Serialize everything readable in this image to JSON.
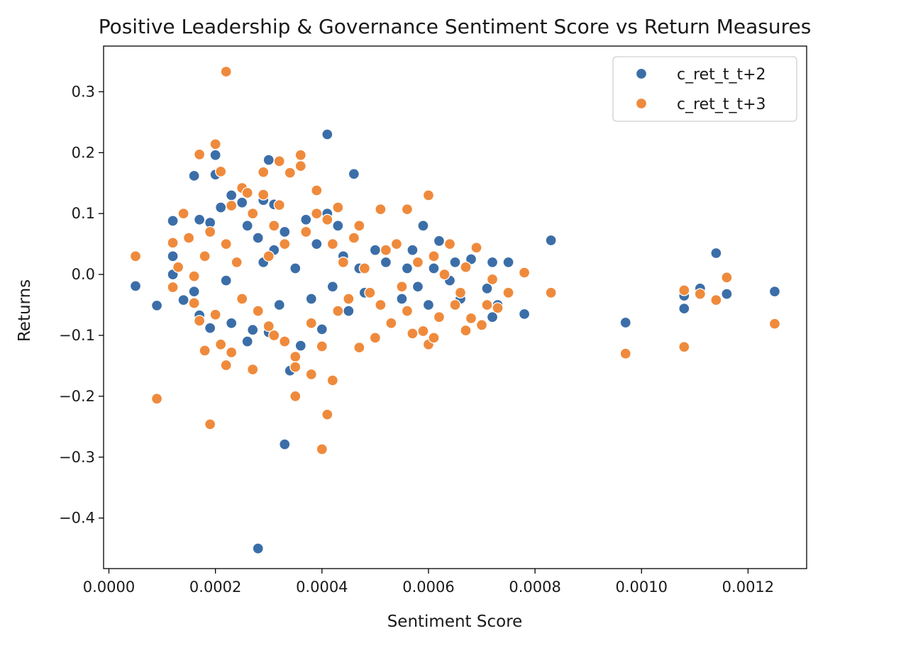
{
  "chart_data": {
    "type": "scatter",
    "title": "Positive Leadership & Governance Sentiment Score vs Return Measures",
    "xlabel": "Sentiment Score",
    "ylabel": "Returns",
    "xlim": [
      -1e-05,
      0.00131
    ],
    "ylim": [
      -0.483,
      0.375
    ],
    "xticks": [
      0.0,
      0.0002,
      0.0004,
      0.0006,
      0.0008,
      0.001,
      0.0012
    ],
    "xtick_labels": [
      "0.0000",
      "0.0002",
      "0.0004",
      "0.0006",
      "0.0008",
      "0.0010",
      "0.0012"
    ],
    "yticks": [
      -0.4,
      -0.3,
      -0.2,
      -0.1,
      0.0,
      0.1,
      0.2,
      0.3
    ],
    "ytick_labels": [
      "−0.4",
      "−0.3",
      "−0.2",
      "−0.1",
      "0.0",
      "0.1",
      "0.2",
      "0.3"
    ],
    "grid": false,
    "legend_position": "top-right",
    "series": [
      {
        "name": "c_ret_t_t+2",
        "color": "#3b6ea8",
        "points": [
          [
            5e-05,
            -0.019
          ],
          [
            9e-05,
            -0.051
          ],
          [
            0.00012,
            0.03
          ],
          [
            0.00012,
            0.088
          ],
          [
            0.00012,
            0.0
          ],
          [
            0.00014,
            -0.042
          ],
          [
            0.00016,
            0.162
          ],
          [
            0.00016,
            -0.028
          ],
          [
            0.00017,
            0.09
          ],
          [
            0.00017,
            -0.067
          ],
          [
            0.00019,
            -0.088
          ],
          [
            0.00019,
            0.085
          ],
          [
            0.0002,
            0.196
          ],
          [
            0.0002,
            0.164
          ],
          [
            0.00021,
            0.11
          ],
          [
            0.00022,
            -0.01
          ],
          [
            0.00023,
            0.13
          ],
          [
            0.00023,
            -0.08
          ],
          [
            0.00025,
            0.118
          ],
          [
            0.00026,
            0.08
          ],
          [
            0.00026,
            -0.11
          ],
          [
            0.00027,
            -0.091
          ],
          [
            0.00028,
            0.06
          ],
          [
            0.00028,
            -0.45
          ],
          [
            0.00029,
            0.122
          ],
          [
            0.00029,
            0.02
          ],
          [
            0.0003,
            0.188
          ],
          [
            0.0003,
            -0.095
          ],
          [
            0.00031,
            0.04
          ],
          [
            0.00031,
            0.115
          ],
          [
            0.00032,
            -0.05
          ],
          [
            0.00033,
            0.07
          ],
          [
            0.00033,
            -0.279
          ],
          [
            0.00034,
            -0.158
          ],
          [
            0.00035,
            0.01
          ],
          [
            0.00036,
            -0.117
          ],
          [
            0.00037,
            0.09
          ],
          [
            0.00038,
            -0.04
          ],
          [
            0.00039,
            0.05
          ],
          [
            0.0004,
            -0.09
          ],
          [
            0.00041,
            0.1
          ],
          [
            0.00041,
            0.23
          ],
          [
            0.00042,
            -0.02
          ],
          [
            0.00043,
            0.08
          ],
          [
            0.00044,
            0.03
          ],
          [
            0.00045,
            -0.06
          ],
          [
            0.00046,
            0.165
          ],
          [
            0.00047,
            0.01
          ],
          [
            0.00048,
            -0.03
          ],
          [
            0.0005,
            0.04
          ],
          [
            0.00051,
            -0.05
          ],
          [
            0.00052,
            0.02
          ],
          [
            0.00054,
            0.05
          ],
          [
            0.00055,
            -0.04
          ],
          [
            0.00056,
            0.01
          ],
          [
            0.00057,
            0.04
          ],
          [
            0.00058,
            -0.02
          ],
          [
            0.00059,
            0.08
          ],
          [
            0.0006,
            -0.05
          ],
          [
            0.00061,
            0.01
          ],
          [
            0.00062,
            0.055
          ],
          [
            0.00064,
            -0.01
          ],
          [
            0.00065,
            0.02
          ],
          [
            0.00066,
            -0.04
          ],
          [
            0.00068,
            0.025
          ],
          [
            0.00071,
            -0.023
          ],
          [
            0.00072,
            -0.07
          ],
          [
            0.00072,
            0.02
          ],
          [
            0.00073,
            -0.05
          ],
          [
            0.00075,
            0.02
          ],
          [
            0.00078,
            -0.065
          ],
          [
            0.00083,
            0.056
          ],
          [
            0.00097,
            -0.079
          ],
          [
            0.00108,
            -0.035
          ],
          [
            0.00108,
            -0.056
          ],
          [
            0.00111,
            -0.023
          ],
          [
            0.00114,
            0.035
          ],
          [
            0.00116,
            -0.032
          ],
          [
            0.00125,
            -0.028
          ]
        ]
      },
      {
        "name": "c_ret_t_t+3",
        "color": "#ef8a3c",
        "points": [
          [
            5e-05,
            0.03
          ],
          [
            9e-05,
            -0.204
          ],
          [
            0.00012,
            0.052
          ],
          [
            0.00012,
            -0.021
          ],
          [
            0.00013,
            0.012
          ],
          [
            0.00014,
            0.1
          ],
          [
            0.00015,
            0.06
          ],
          [
            0.00016,
            -0.003
          ],
          [
            0.00016,
            -0.047
          ],
          [
            0.00017,
            0.197
          ],
          [
            0.00017,
            -0.076
          ],
          [
            0.00018,
            -0.125
          ],
          [
            0.00018,
            0.03
          ],
          [
            0.00019,
            -0.246
          ],
          [
            0.00019,
            0.07
          ],
          [
            0.0002,
            0.214
          ],
          [
            0.0002,
            -0.066
          ],
          [
            0.00021,
            0.169
          ],
          [
            0.00021,
            -0.115
          ],
          [
            0.00022,
            -0.149
          ],
          [
            0.00022,
            0.05
          ],
          [
            0.00022,
            0.333
          ],
          [
            0.00023,
            0.113
          ],
          [
            0.00023,
            -0.128
          ],
          [
            0.00024,
            0.02
          ],
          [
            0.00025,
            0.142
          ],
          [
            0.00025,
            -0.04
          ],
          [
            0.00026,
            0.134
          ],
          [
            0.00027,
            -0.156
          ],
          [
            0.00027,
            0.1
          ],
          [
            0.00028,
            -0.06
          ],
          [
            0.00029,
            0.168
          ],
          [
            0.00029,
            0.131
          ],
          [
            0.0003,
            0.03
          ],
          [
            0.0003,
            -0.085
          ],
          [
            0.00031,
            0.08
          ],
          [
            0.00031,
            -0.1
          ],
          [
            0.00032,
            0.186
          ],
          [
            0.00032,
            0.114
          ],
          [
            0.00033,
            -0.11
          ],
          [
            0.00033,
            0.05
          ],
          [
            0.00034,
            0.167
          ],
          [
            0.00035,
            -0.135
          ],
          [
            0.00035,
            -0.152
          ],
          [
            0.00035,
            -0.2
          ],
          [
            0.00036,
            0.196
          ],
          [
            0.00036,
            0.178
          ],
          [
            0.00037,
            0.07
          ],
          [
            0.00038,
            -0.164
          ],
          [
            0.00038,
            -0.08
          ],
          [
            0.00039,
            0.138
          ],
          [
            0.00039,
            0.1
          ],
          [
            0.0004,
            -0.287
          ],
          [
            0.0004,
            -0.118
          ],
          [
            0.00041,
            -0.23
          ],
          [
            0.00041,
            0.09
          ],
          [
            0.00042,
            -0.174
          ],
          [
            0.00042,
            0.05
          ],
          [
            0.00043,
            0.11
          ],
          [
            0.00043,
            -0.06
          ],
          [
            0.00044,
            0.02
          ],
          [
            0.00045,
            -0.04
          ],
          [
            0.00046,
            0.06
          ],
          [
            0.00047,
            -0.12
          ],
          [
            0.00047,
            0.08
          ],
          [
            0.00048,
            0.01
          ],
          [
            0.00049,
            -0.03
          ],
          [
            0.0005,
            -0.104
          ],
          [
            0.00051,
            0.107
          ],
          [
            0.00051,
            -0.05
          ],
          [
            0.00052,
            0.04
          ],
          [
            0.00053,
            -0.08
          ],
          [
            0.00054,
            0.05
          ],
          [
            0.00055,
            -0.02
          ],
          [
            0.00056,
            0.107
          ],
          [
            0.00056,
            -0.06
          ],
          [
            0.00057,
            -0.097
          ],
          [
            0.00058,
            0.02
          ],
          [
            0.00059,
            -0.093
          ],
          [
            0.0006,
            0.13
          ],
          [
            0.0006,
            -0.115
          ],
          [
            0.00061,
            0.03
          ],
          [
            0.00061,
            -0.104
          ],
          [
            0.00062,
            -0.07
          ],
          [
            0.00063,
            0.0
          ],
          [
            0.00064,
            0.05
          ],
          [
            0.00065,
            -0.05
          ],
          [
            0.00066,
            -0.03
          ],
          [
            0.00067,
            -0.092
          ],
          [
            0.00067,
            0.012
          ],
          [
            0.00068,
            -0.072
          ],
          [
            0.00069,
            0.044
          ],
          [
            0.0007,
            -0.083
          ],
          [
            0.00071,
            -0.05
          ],
          [
            0.00072,
            -0.008
          ],
          [
            0.00073,
            -0.055
          ],
          [
            0.00075,
            -0.03
          ],
          [
            0.00078,
            0.003
          ],
          [
            0.00083,
            -0.03
          ],
          [
            0.00097,
            -0.13
          ],
          [
            0.00108,
            -0.026
          ],
          [
            0.00108,
            -0.119
          ],
          [
            0.00111,
            -0.032
          ],
          [
            0.00114,
            -0.042
          ],
          [
            0.00116,
            -0.005
          ],
          [
            0.00125,
            -0.081
          ]
        ]
      }
    ]
  }
}
